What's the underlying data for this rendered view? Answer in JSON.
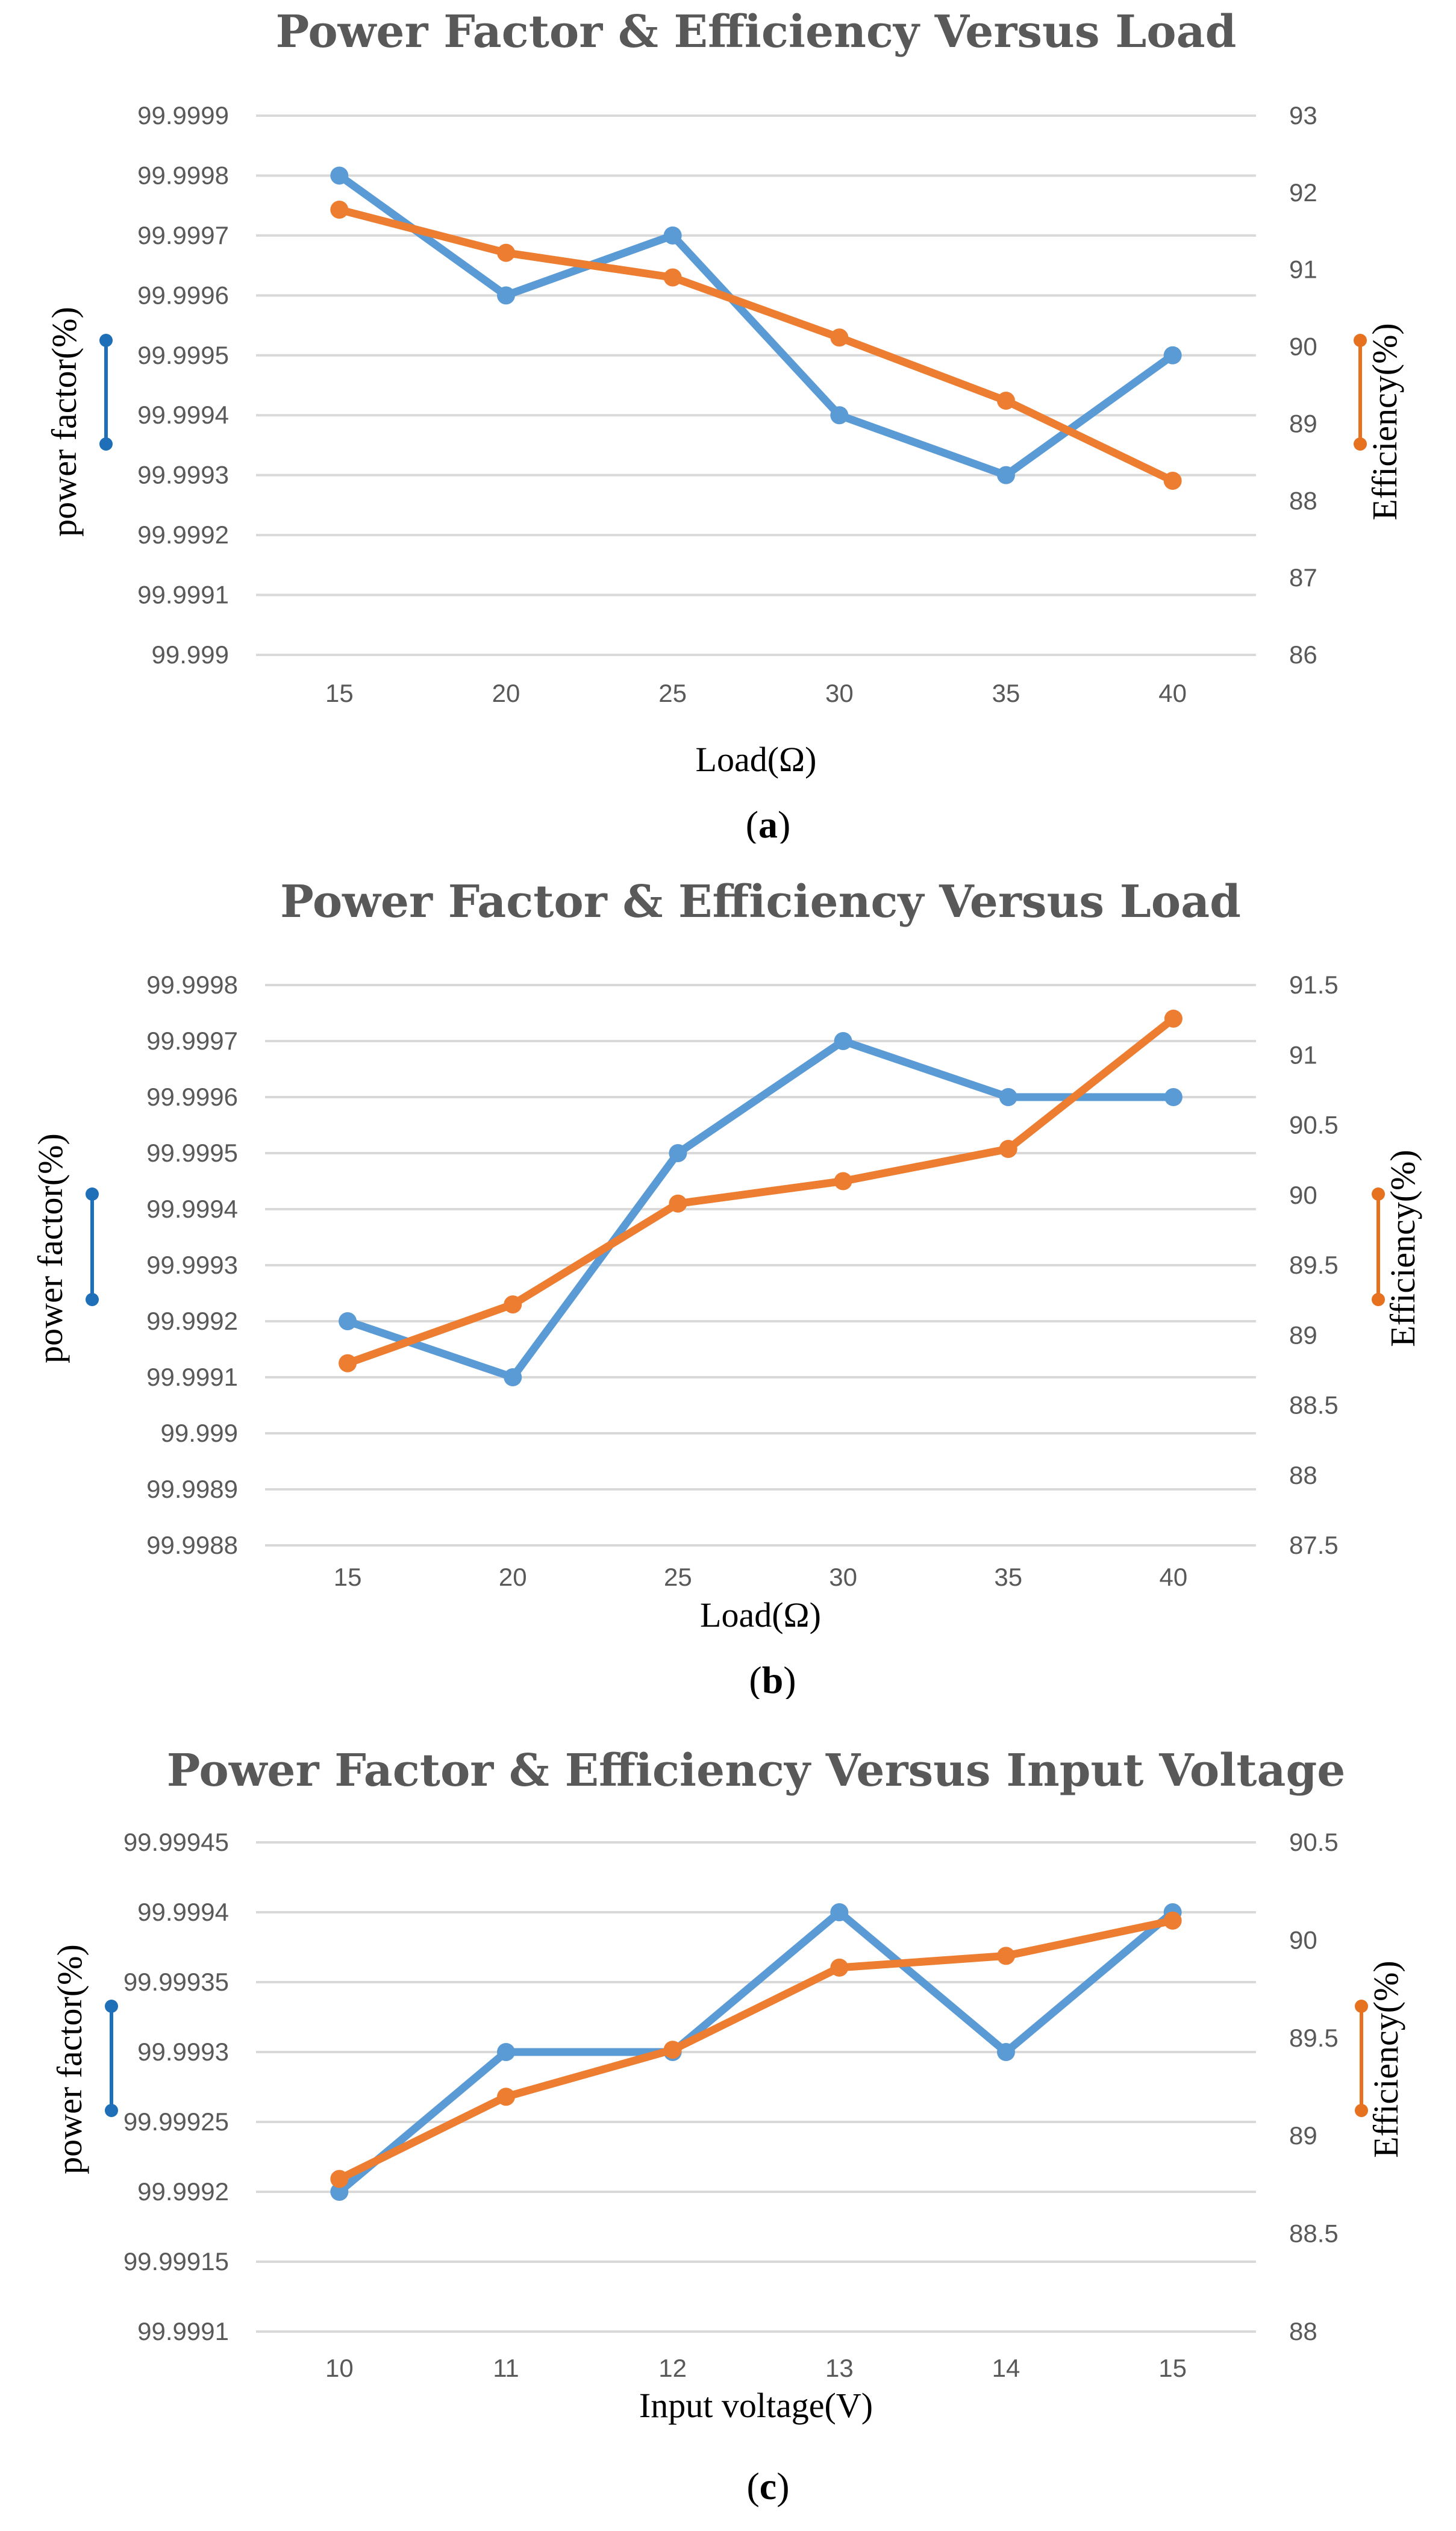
{
  "chart_data": [
    {
      "type": "line",
      "panel": "a",
      "title": "Power Factor & Efficiency Versus Load",
      "xlabel": "Load(Ω)",
      "ylabel": "power factor(%)",
      "y2label": "Efficiency(%)",
      "caption_open": "(",
      "caption_letter": "a",
      "caption_close": ")",
      "categories": [
        "15",
        "20",
        "25",
        "30",
        "35",
        "40"
      ],
      "y_ticks": [
        "99.999",
        "99.9991",
        "99.9992",
        "99.9993",
        "99.9994",
        "99.9995",
        "99.9996",
        "99.9997",
        "99.9998",
        "99.9999"
      ],
      "y2_ticks": [
        "86",
        "87",
        "88",
        "89",
        "90",
        "91",
        "92",
        "93"
      ],
      "ylim": [
        99.999,
        99.9999
      ],
      "y2lim": [
        86,
        93
      ],
      "series": [
        {
          "name": "power factor",
          "axis": "left",
          "color": "#5b9bd5",
          "values": [
            99.9998,
            99.9996,
            99.9997,
            99.9994,
            99.9993,
            99.9995
          ]
        },
        {
          "name": "Efficiency",
          "axis": "right",
          "color": "#ed7d31",
          "values": [
            91.78,
            91.22,
            90.9,
            90.12,
            89.3,
            88.26
          ]
        }
      ]
    },
    {
      "type": "line",
      "panel": "b",
      "title": "Power Factor & Efficiency Versus Load",
      "xlabel": "Load(Ω)",
      "ylabel": "power factor(%)",
      "y2label": "Efficiency(%)",
      "caption_open": "(",
      "caption_letter": "b",
      "caption_close": ")",
      "categories": [
        "15",
        "20",
        "25",
        "30",
        "35",
        "40"
      ],
      "y_ticks": [
        "99.9988",
        "99.9989",
        "99.999",
        "99.9991",
        "99.9992",
        "99.9993",
        "99.9994",
        "99.9995",
        "99.9996",
        "99.9997",
        "99.9998"
      ],
      "y2_ticks": [
        "87.5",
        "88",
        "88.5",
        "89",
        "89.5",
        "90",
        "90.5",
        "91",
        "91.5"
      ],
      "ylim": [
        99.9988,
        99.9998
      ],
      "y2lim": [
        87.5,
        91.5
      ],
      "series": [
        {
          "name": "power factor",
          "axis": "left",
          "color": "#5b9bd5",
          "values": [
            99.9992,
            99.9991,
            99.9995,
            99.9997,
            99.9996,
            99.9996
          ]
        },
        {
          "name": "Efficiency",
          "axis": "right",
          "color": "#ed7d31",
          "values": [
            88.8,
            89.22,
            89.94,
            90.1,
            90.33,
            91.26
          ]
        }
      ]
    },
    {
      "type": "line",
      "panel": "c",
      "title": "Power Factor & Efficiency Versus Input Voltage",
      "xlabel": "Input voltage(V)",
      "ylabel": "power factor(%)",
      "y2label": "Efficiency(%)",
      "caption_open": "(",
      "caption_letter": "c",
      "caption_close": ")",
      "categories": [
        "10",
        "11",
        "12",
        "13",
        "14",
        "15"
      ],
      "y_ticks": [
        "99.9991",
        "99.99915",
        "99.9992",
        "99.99925",
        "99.9993",
        "99.99935",
        "99.9994",
        "99.99945"
      ],
      "y2_ticks": [
        "88",
        "88.5",
        "89",
        "89.5",
        "90",
        "90.5"
      ],
      "ylim": [
        99.9991,
        99.99945
      ],
      "y2lim": [
        88,
        90.5
      ],
      "series": [
        {
          "name": "power factor",
          "axis": "left",
          "color": "#5b9bd5",
          "values": [
            99.9992,
            99.9993,
            99.9993,
            99.9994,
            99.9993,
            99.9994
          ]
        },
        {
          "name": "Efficiency",
          "axis": "right",
          "color": "#ed7d31",
          "values": [
            88.78,
            89.2,
            89.44,
            89.86,
            89.92,
            90.1
          ]
        }
      ]
    }
  ]
}
